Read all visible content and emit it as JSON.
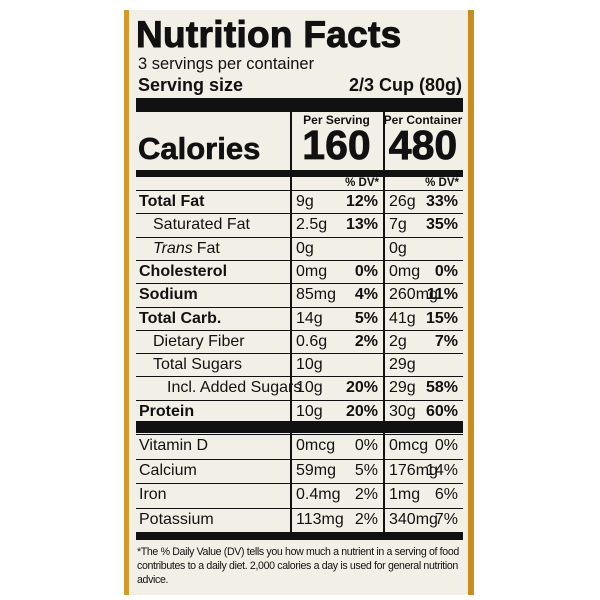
{
  "title": "Nutrition Facts",
  "servings": "3 servings per container",
  "serving_size": {
    "label": "Serving size",
    "value": "2/3 Cup (80g)"
  },
  "columns": [
    "Per Serving",
    "Per Container"
  ],
  "calories": {
    "label": "Calories",
    "values": [
      160,
      480
    ]
  },
  "dv_header": [
    "% DV*",
    "% DV*"
  ],
  "nutrients": [
    {
      "name": [
        "Total Fat"
      ],
      "bold": true,
      "indent": 0,
      "per_serving": [
        "9g",
        "12%"
      ],
      "per_container": [
        "26g",
        "33%"
      ]
    },
    {
      "name": [
        "Saturated Fat"
      ],
      "bold": false,
      "indent": 1,
      "per_serving": [
        "2.5g",
        "13%"
      ],
      "per_container": [
        "7g",
        "35%"
      ]
    },
    {
      "name": [
        "Trans",
        "Fat"
      ],
      "italic_part": 0,
      "bold": false,
      "indent": 1,
      "per_serving": [
        "0g"
      ],
      "per_container": [
        "0g"
      ]
    },
    {
      "name": [
        "Cholesterol"
      ],
      "bold": true,
      "indent": 0,
      "per_serving": [
        "0mg",
        "0%"
      ],
      "per_container": [
        "0mg",
        "0%"
      ]
    },
    {
      "name": [
        "Sodium"
      ],
      "bold": true,
      "indent": 0,
      "per_serving": [
        "85mg",
        "4%"
      ],
      "per_container": [
        "260mg",
        "11%"
      ]
    },
    {
      "name": [
        "Total Carb."
      ],
      "bold": true,
      "indent": 0,
      "per_serving": [
        "14g",
        "5%"
      ],
      "per_container": [
        "41g",
        "15%"
      ]
    },
    {
      "name": [
        "Dietary Fiber"
      ],
      "bold": false,
      "indent": 1,
      "per_serving": [
        "0.6g",
        "2%"
      ],
      "per_container": [
        "2g",
        "7%"
      ]
    },
    {
      "name": [
        "Total Sugars"
      ],
      "bold": false,
      "indent": 1,
      "per_serving": [
        "10g"
      ],
      "per_container": [
        "29g"
      ]
    },
    {
      "name": [
        "Incl. Added Sugars"
      ],
      "bold": false,
      "indent": 2,
      "per_serving": [
        "10g",
        "20%"
      ],
      "per_container": [
        "29g",
        "58%"
      ]
    },
    {
      "name": [
        "Protein"
      ],
      "bold": true,
      "indent": 0,
      "per_serving": [
        "10g",
        "20%"
      ],
      "per_container": [
        "30g",
        "60%"
      ]
    }
  ],
  "vitamins": [
    {
      "name": [
        "Vitamin D"
      ],
      "per_serving": [
        "0mcg",
        "0%"
      ],
      "per_container": [
        "0mcg",
        "0%"
      ]
    },
    {
      "name": [
        "Calcium"
      ],
      "per_serving": [
        "59mg",
        "5%"
      ],
      "per_container": [
        "176mg",
        "14%"
      ]
    },
    {
      "name": [
        "Iron"
      ],
      "per_serving": [
        "0.4mg",
        "2%"
      ],
      "per_container": [
        "1mg",
        "6%"
      ]
    },
    {
      "name": [
        "Potassium"
      ],
      "per_serving": [
        "113mg",
        "2%"
      ],
      "per_container": [
        "340mg",
        "7%"
      ]
    }
  ],
  "footnote": "*The % Daily Value (DV) tells you how much a nutrient in a serving of food contributes to a daily diet. 2,000 calories a day is used for general nutrition advice."
}
